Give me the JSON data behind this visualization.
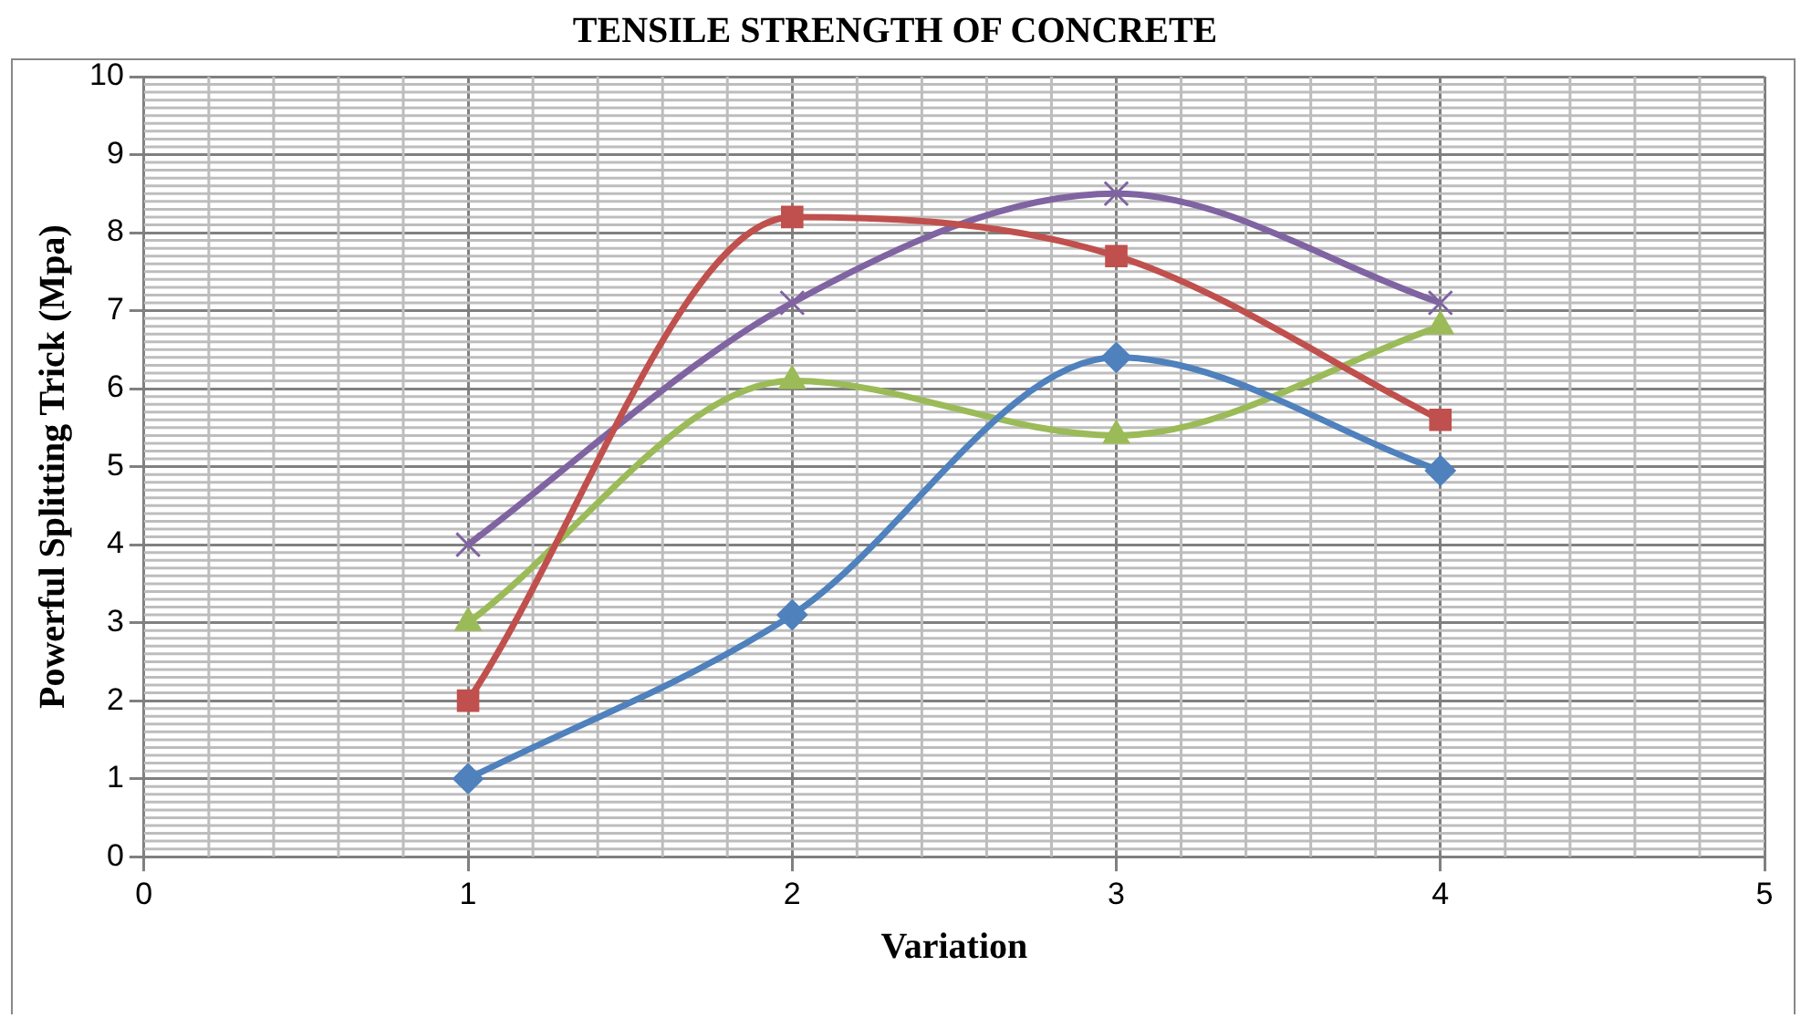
{
  "chart_data": {
    "type": "line",
    "title": "TENSILE STRENGTH OF CONCRETE",
    "xlabel": "Variation",
    "ylabel": "Powerful Splitting Trick (Mpa)",
    "x": [
      1,
      2,
      3,
      4
    ],
    "series": [
      {
        "color": "#4f81bd",
        "marker": "diamond",
        "values": [
          1.0,
          3.1,
          6.4,
          4.95
        ]
      },
      {
        "color": "#c0504d",
        "marker": "square",
        "values": [
          2.0,
          8.2,
          7.7,
          5.6
        ]
      },
      {
        "color": "#9bbb59",
        "marker": "triangle",
        "values": [
          3.0,
          6.1,
          5.4,
          6.8
        ]
      },
      {
        "color": "#8064a2",
        "marker": "cross",
        "values": [
          4.0,
          7.1,
          8.5,
          7.1
        ]
      }
    ],
    "xlim": [
      0,
      5
    ],
    "xticks": [
      0,
      1,
      2,
      3,
      4,
      5
    ],
    "ylim": [
      0,
      10
    ],
    "yticks": [
      0,
      1,
      2,
      3,
      4,
      5,
      6,
      7,
      8,
      9,
      10
    ],
    "grid": true,
    "legend": false,
    "line_style": "solid"
  }
}
